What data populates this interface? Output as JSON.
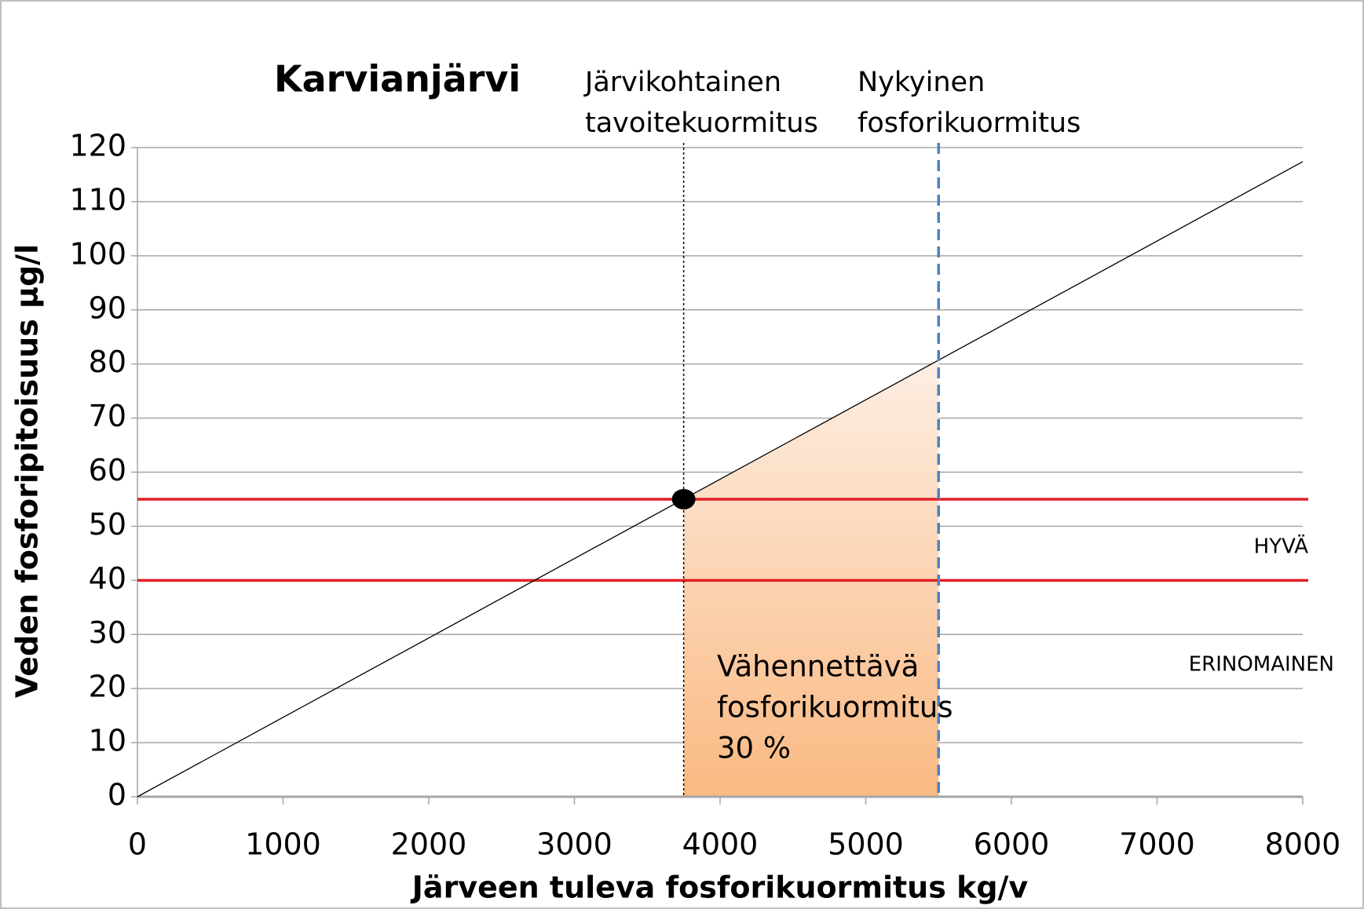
{
  "chart_data": {
    "type": "line",
    "title": "Karvianjärvi",
    "xlabel": "Järveen tuleva fosforikuormitus kg/v",
    "ylabel": "Veden fosforipitoisuus µg/l",
    "x": [
      0,
      8000
    ],
    "series": [
      {
        "color": "#000000",
        "values": [
          0,
          117.4
        ]
      }
    ],
    "xlim": [
      0,
      8000
    ],
    "ylim": [
      0,
      120
    ],
    "xticks": [
      0,
      1000,
      2000,
      3000,
      4000,
      5000,
      6000,
      7000,
      8000
    ],
    "yticks": [
      0,
      10,
      20,
      30,
      40,
      50,
      60,
      70,
      80,
      90,
      100,
      110,
      120
    ],
    "grid": true,
    "threshold_lines": {
      "values": [
        55,
        40
      ],
      "color": "#e31e24"
    },
    "zone_labels": [
      "HYVÄ",
      "ERINOMAINEN"
    ],
    "markers": [
      {
        "x": 3750,
        "label": [
          "Järvikohtainen",
          "tavoitekuormitus"
        ],
        "color": "#000000",
        "style": "dotted"
      },
      {
        "x": 5500,
        "label": [
          "Nykyinen",
          "fosforikuormitus"
        ],
        "color": "#4f81bd",
        "style": "dashed"
      }
    ],
    "point": {
      "x": 3750,
      "y": 55,
      "color": "#000000"
    },
    "reduction": {
      "from": 3750,
      "to": 5500,
      "label": [
        "Vähennettävä",
        "fosforikuormitus",
        "30 %"
      ]
    }
  }
}
